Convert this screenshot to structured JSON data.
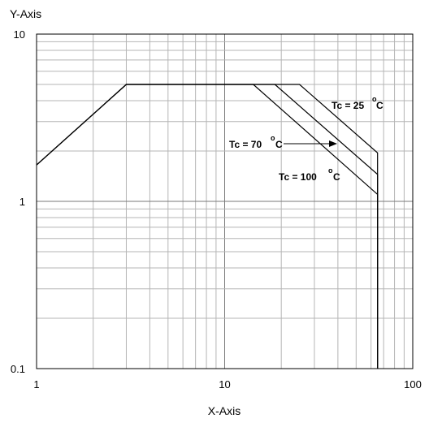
{
  "chart_data": {
    "type": "line",
    "xlabel": "X-Axis",
    "ylabel": "Y-Axis",
    "x_scale": "log",
    "y_scale": "log",
    "xlim": [
      1,
      100
    ],
    "ylim": [
      0.1,
      10
    ],
    "x_ticks": [
      "1",
      "10",
      "100"
    ],
    "y_ticks": [
      "10",
      "1",
      "0.1"
    ],
    "grid": true,
    "series": [
      {
        "name": "Tc = 25 °C",
        "points": [
          [
            1,
            1.65
          ],
          [
            3,
            5
          ],
          [
            25,
            5
          ],
          [
            65,
            1.95
          ],
          [
            65,
            0.1
          ]
        ]
      },
      {
        "name": "Tc = 70 °C",
        "points": [
          [
            1,
            1.65
          ],
          [
            3,
            5
          ],
          [
            18.5,
            5
          ],
          [
            65,
            1.45
          ],
          [
            65,
            0.1
          ]
        ]
      },
      {
        "name": "Tc = 100 °C",
        "points": [
          [
            1,
            1.65
          ],
          [
            3,
            5
          ],
          [
            14.2,
            5
          ],
          [
            65,
            1.1
          ],
          [
            65,
            0.1
          ]
        ]
      }
    ],
    "annotations": [
      {
        "text": "Tc = 25",
        "unit": "C",
        "deg": "o"
      },
      {
        "text": "Tc = 70",
        "unit": "C",
        "deg": "o"
      },
      {
        "text": "Tc = 100",
        "unit": "C",
        "deg": "o"
      }
    ]
  }
}
